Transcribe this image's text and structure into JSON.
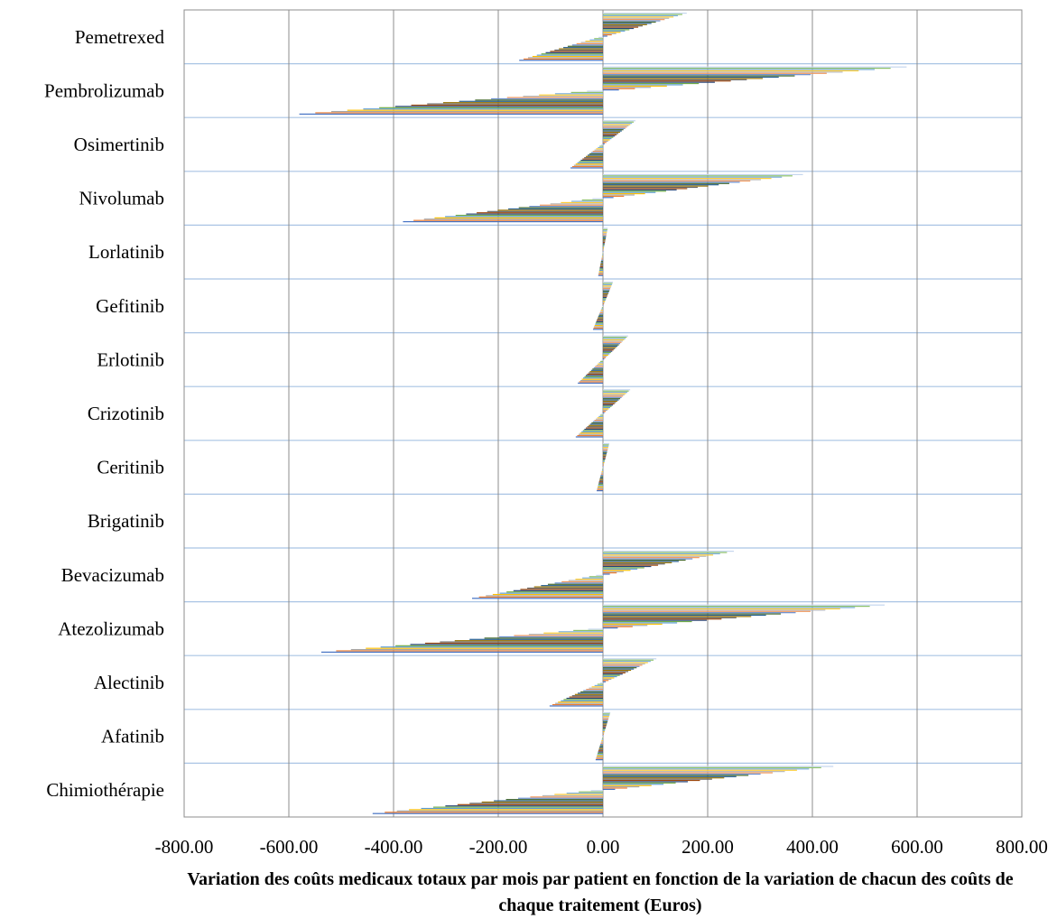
{
  "chart_data": {
    "type": "bar",
    "orientation": "horizontal",
    "title": "",
    "xlabel": "Variation des coûts medicaux totaux par mois par patient en fonction de la variation de chacun des coûts de chaque traitement  (Euros)",
    "ylabel": "",
    "xlim": [
      -800,
      800
    ],
    "x_ticks": [
      "-800.00",
      "-600.00",
      "-400.00",
      "-200.00",
      "0.00",
      "200.00",
      "400.00",
      "600.00",
      "800.00"
    ],
    "grid": {
      "vertical": true,
      "horizontal": true
    },
    "legend": "none",
    "series_colors": [
      "#4472c4",
      "#ed7d31",
      "#a5a5a5",
      "#ffc000",
      "#5b9bd5",
      "#70ad47",
      "#264478",
      "#9e480e",
      "#636363",
      "#997300",
      "#255e91",
      "#43682b",
      "#698ed0",
      "#f1975a",
      "#b7b7b7",
      "#ffcd33",
      "#7cafdd",
      "#8cc168",
      "#c5d6ee"
    ],
    "categories": [
      "Pemetrexed",
      "Pembrolizumab",
      "Osimertinib",
      "Nivolumab",
      "Lorlatinib",
      "Gefitinib",
      "Erlotinib",
      "Crizotinib",
      "Ceritinib",
      "Brigatinib",
      "Bevacizumab",
      "Atezolizumab",
      "Alectinib",
      "Afatinib",
      "Chimiothérapie"
    ],
    "max_variation": [
      160,
      580,
      62,
      382,
      9,
      19,
      48,
      52,
      12,
      0,
      250,
      538,
      102,
      14,
      440
    ]
  }
}
